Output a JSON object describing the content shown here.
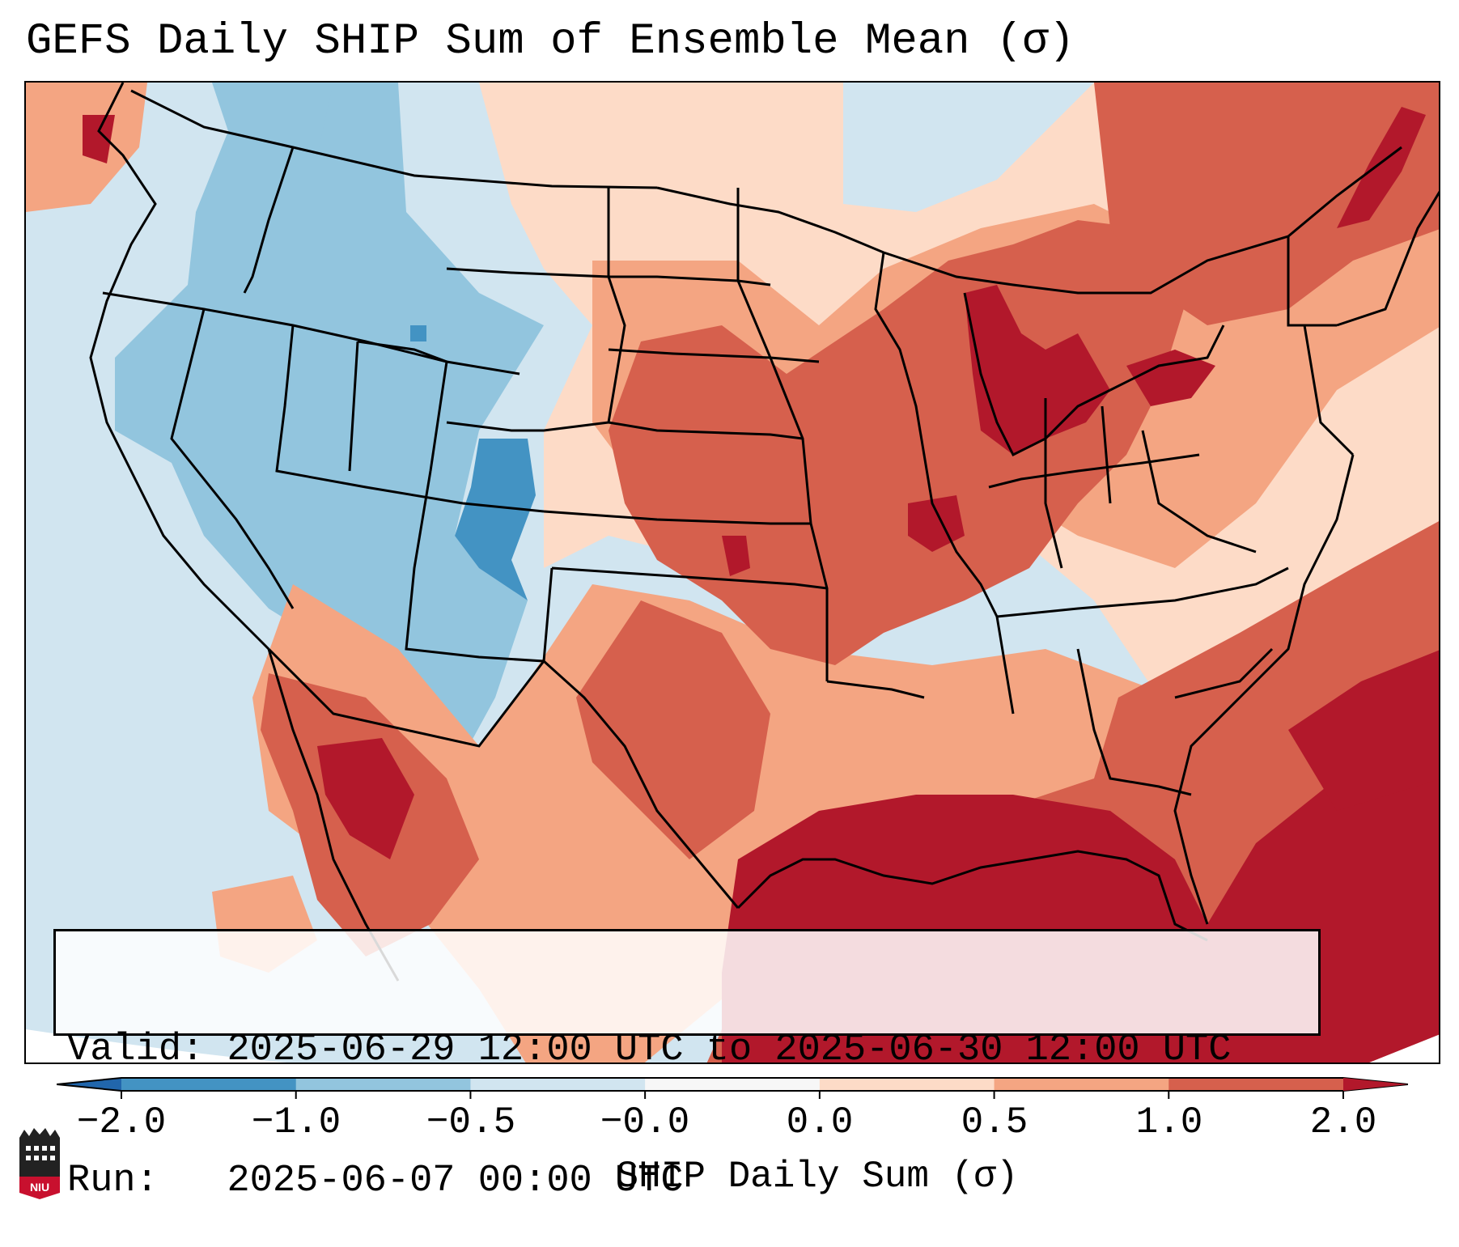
{
  "title": "GEFS Daily SHIP Sum of Ensemble Mean (σ)",
  "info": {
    "valid_label": "Valid:",
    "valid_value": "2025-06-29 12:00 UTC to 2025-06-30 12:00 UTC",
    "run_label": "Run:",
    "run_value": "2025-06-07 00:00 UTC"
  },
  "colorbar": {
    "label": "SHIP Daily Sum (σ)",
    "ticks": [
      "−2.0",
      "−1.0",
      "−0.5",
      "−0.0",
      "0.0",
      "0.5",
      "1.0",
      "2.0"
    ],
    "bins": [
      {
        "from": -2.0,
        "to": -1.0,
        "color": "#4393c3"
      },
      {
        "from": -1.0,
        "to": -0.5,
        "color": "#92c5de"
      },
      {
        "from": -0.5,
        "to": -0.0,
        "color": "#d1e5f0"
      },
      {
        "from": -0.0,
        "to": 0.0,
        "color": "#f7f7f7"
      },
      {
        "from": 0.0,
        "to": 0.5,
        "color": "#fddbc7"
      },
      {
        "from": 0.5,
        "to": 1.0,
        "color": "#f4a582"
      },
      {
        "from": 1.0,
        "to": 2.0,
        "color": "#d6604d"
      }
    ],
    "under_color": "#2166ac",
    "over_color": "#b2182b"
  },
  "logo": {
    "text": "NIU",
    "color": "#c8102e"
  }
}
